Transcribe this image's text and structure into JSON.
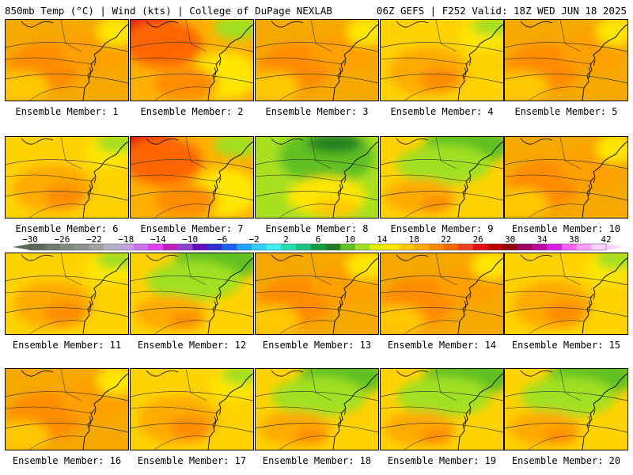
{
  "header": {
    "left": "850mb Temp (°C) | Wind (kts) | College of DuPage NEXLAB",
    "right": "06Z GEFS | F252 Valid: 18Z WED JUN 18 2025"
  },
  "colorbar": {
    "tick_labels": [
      "−30",
      "−26",
      "−22",
      "−18",
      "−14",
      "−10",
      "−6",
      "−2",
      "2",
      "6",
      "10",
      "14",
      "18",
      "22",
      "26",
      "30",
      "34",
      "38",
      "42"
    ],
    "colors": [
      "#5a6a5a",
      "#6c7c6c",
      "#7e8e7e",
      "#909090",
      "#a2a2a2",
      "#b4b4c8",
      "#c8a0e0",
      "#d070f0",
      "#e040f0",
      "#c020c0",
      "#9040d0",
      "#6010c0",
      "#3030d0",
      "#2060f0",
      "#20a0ff",
      "#30d0ff",
      "#40f0f0",
      "#20e0b0",
      "#20c080",
      "#10a040",
      "#208020",
      "#60c020",
      "#a0e020",
      "#e0f000",
      "#ffe600",
      "#ffc800",
      "#ffaa00",
      "#ff8c00",
      "#ff6600",
      "#f04020",
      "#e01010",
      "#c00000",
      "#900000",
      "#a00060",
      "#c000a0",
      "#e020e0",
      "#ff60ff",
      "#ffa0ff",
      "#ffd0ff"
    ]
  },
  "panels": [
    {
      "label": "Ensemble Member: 1",
      "scheme": "warm"
    },
    {
      "label": "Ensemble Member: 2",
      "scheme": "hot-nw"
    },
    {
      "label": "Ensemble Member: 3",
      "scheme": "warm"
    },
    {
      "label": "Ensemble Member: 4",
      "scheme": "yellow"
    },
    {
      "label": "Ensemble Member: 5",
      "scheme": "warm"
    },
    {
      "label": "Ensemble Member: 6",
      "scheme": "yellow"
    },
    {
      "label": "Ensemble Member: 7",
      "scheme": "hot-nw"
    },
    {
      "label": "Ensemble Member: 8",
      "scheme": "green"
    },
    {
      "label": "Ensemble Member: 9",
      "scheme": "yellow-green"
    },
    {
      "label": "Ensemble Member: 10",
      "scheme": "warm"
    },
    {
      "label": "Ensemble Member: 11",
      "scheme": "yellow"
    },
    {
      "label": "Ensemble Member: 12",
      "scheme": "yellow-green"
    },
    {
      "label": "Ensemble Member: 13",
      "scheme": "warm"
    },
    {
      "label": "Ensemble Member: 14",
      "scheme": "warm"
    },
    {
      "label": "Ensemble Member: 15",
      "scheme": "yellow"
    },
    {
      "label": "Ensemble Member: 16",
      "scheme": "warm"
    },
    {
      "label": "Ensemble Member: 17",
      "scheme": "yellow"
    },
    {
      "label": "Ensemble Member: 18",
      "scheme": "yellow-green"
    },
    {
      "label": "Ensemble Member: 19",
      "scheme": "yellow-green"
    },
    {
      "label": "Ensemble Member: 20",
      "scheme": "yellow-green"
    }
  ]
}
